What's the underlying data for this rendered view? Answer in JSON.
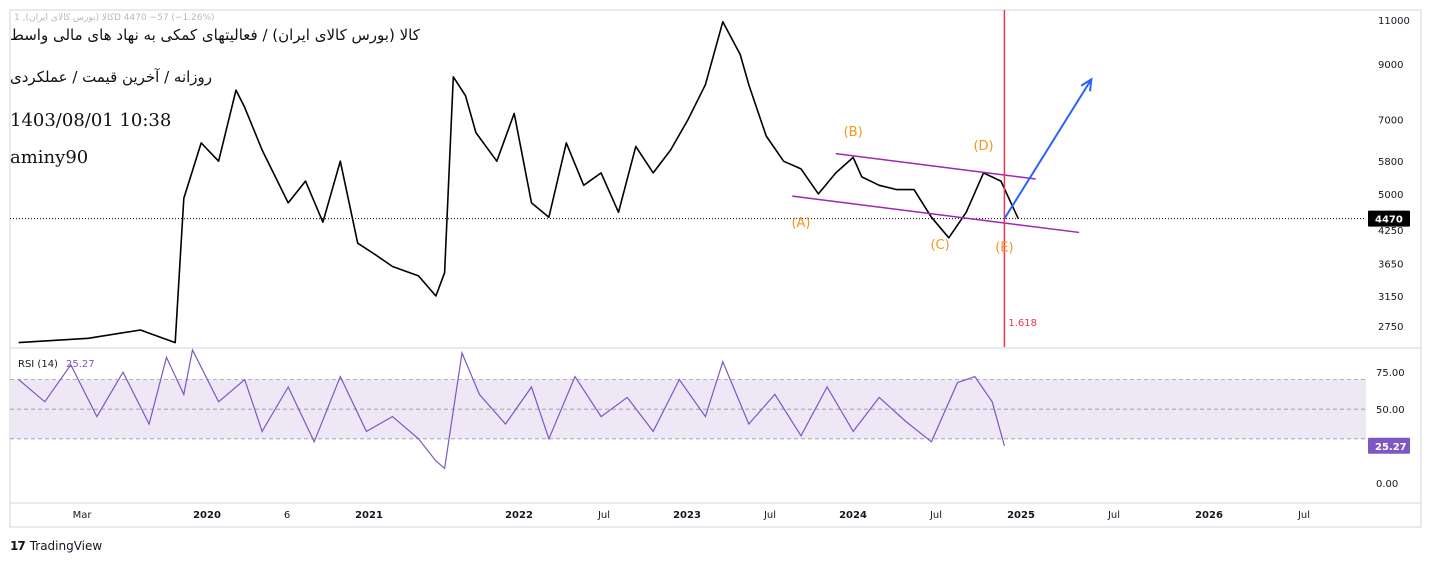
{
  "header": {
    "symbol_legend": "کالا (بورس کالای ایران), 1D  4470  −57 (−1.26%)",
    "title_line1": "کالا (بورس کالای ایران) / فعالیتهای کمکی به نهاد های مالی واسط",
    "title_line2": "روزانه / آخرین قیمت / عملکردی",
    "timestamp": "1403/08/01 10:38",
    "author": "aminy90"
  },
  "branding": {
    "name": "TradingView"
  },
  "colors": {
    "price_line": "#000000",
    "channel": "#9c27b0",
    "wave_label": "#f7931a",
    "projection": "#2962ff",
    "fib_line": "#f23645",
    "rsi_line": "#7e57c2",
    "rsi_band": "#ede7f6",
    "axis_text": "#131722"
  },
  "chart_data": [
    {
      "type": "line",
      "name": "price",
      "y_scale": "log",
      "ylim": [
        2500,
        11500
      ],
      "y_ticks": [
        2750,
        3150,
        3650,
        4250,
        5000,
        5800,
        7000,
        9000,
        11000
      ],
      "x_ticks": [
        "Mar",
        "2020",
        "6",
        "2021",
        "2022",
        "Jul",
        "2023",
        "Jul",
        "2024",
        "Jul",
        "2025",
        "Jul",
        "2026",
        "Jul"
      ],
      "last_price": 4470,
      "x": [
        2019.15,
        2019.55,
        2019.85,
        2020.05,
        2020.1,
        2020.2,
        2020.3,
        2020.4,
        2020.45,
        2020.55,
        2020.7,
        2020.8,
        2020.9,
        2021.0,
        2021.1,
        2021.2,
        2021.3,
        2021.45,
        2021.55,
        2021.6,
        2021.65,
        2021.72,
        2021.78,
        2021.9,
        2022.0,
        2022.1,
        2022.2,
        2022.3,
        2022.4,
        2022.5,
        2022.6,
        2022.7,
        2022.8,
        2022.9,
        2023.0,
        2023.1,
        2023.2,
        2023.3,
        2023.35,
        2023.45,
        2023.55,
        2023.65,
        2023.75,
        2023.85,
        2023.95,
        2024.0,
        2024.1,
        2024.2,
        2024.3,
        2024.4,
        2024.5,
        2024.6,
        2024.7,
        2024.8,
        2024.9
      ],
      "y": [
        2550,
        2600,
        2700,
        2550,
        4900,
        6300,
        5800,
        8000,
        7400,
        6100,
        4800,
        5300,
        4400,
        5800,
        4000,
        3800,
        3600,
        3450,
        3150,
        3500,
        8500,
        7800,
        6600,
        5800,
        7200,
        4800,
        4500,
        6300,
        5200,
        5500,
        4600,
        6200,
        5500,
        6100,
        7000,
        8200,
        10900,
        9400,
        8200,
        6500,
        5800,
        5600,
        5000,
        5500,
        5900,
        5400,
        5200,
        5100,
        5100,
        4500,
        4100,
        4600,
        5500,
        5300,
        4470
      ],
      "annotations": [
        {
          "label": "(A)",
          "x": 2023.65,
          "y": 4300
        },
        {
          "label": "(B)",
          "x": 2023.95,
          "y": 6500
        },
        {
          "label": "(C)",
          "x": 2024.45,
          "y": 3900
        },
        {
          "label": "(D)",
          "x": 2024.7,
          "y": 6100
        },
        {
          "label": "(E)",
          "x": 2024.82,
          "y": 3850
        },
        {
          "label": "1.618",
          "x": 2024.84,
          "y": 2750
        }
      ],
      "channel_upper": {
        "x": [
          2023.85,
          2025.0
        ],
        "y": [
          6000,
          5350
        ]
      },
      "channel_lower": {
        "x": [
          2023.6,
          2025.25
        ],
        "y": [
          4950,
          4200
        ]
      },
      "projection": {
        "x": [
          2024.82,
          2025.32
        ],
        "y": [
          4470,
          8400
        ]
      },
      "vertical_line_x": 2024.82
    },
    {
      "type": "line",
      "name": "RSI (14)",
      "value": 25.27,
      "ylim": [
        -10,
        90
      ],
      "y_ticks": [
        0.0,
        50.0,
        75.0
      ],
      "tick_labels": [
        "0.00",
        "50.00",
        "75.00"
      ],
      "band": [
        30,
        70
      ],
      "x": [
        2019.15,
        2019.3,
        2019.45,
        2019.6,
        2019.75,
        2019.9,
        2020.0,
        2020.1,
        2020.15,
        2020.3,
        2020.45,
        2020.55,
        2020.7,
        2020.85,
        2021.0,
        2021.15,
        2021.3,
        2021.45,
        2021.55,
        2021.6,
        2021.7,
        2021.8,
        2021.95,
        2022.1,
        2022.2,
        2022.35,
        2022.5,
        2022.65,
        2022.8,
        2022.95,
        2023.1,
        2023.2,
        2023.35,
        2023.5,
        2023.65,
        2023.8,
        2023.95,
        2024.1,
        2024.25,
        2024.4,
        2024.55,
        2024.65,
        2024.75,
        2024.82
      ],
      "y": [
        70,
        55,
        80,
        45,
        75,
        40,
        85,
        60,
        90,
        55,
        70,
        35,
        65,
        28,
        72,
        35,
        45,
        30,
        15,
        10,
        88,
        60,
        40,
        65,
        30,
        72,
        45,
        58,
        35,
        70,
        45,
        82,
        40,
        60,
        32,
        65,
        35,
        58,
        42,
        28,
        68,
        72,
        55,
        25.27
      ]
    }
  ]
}
